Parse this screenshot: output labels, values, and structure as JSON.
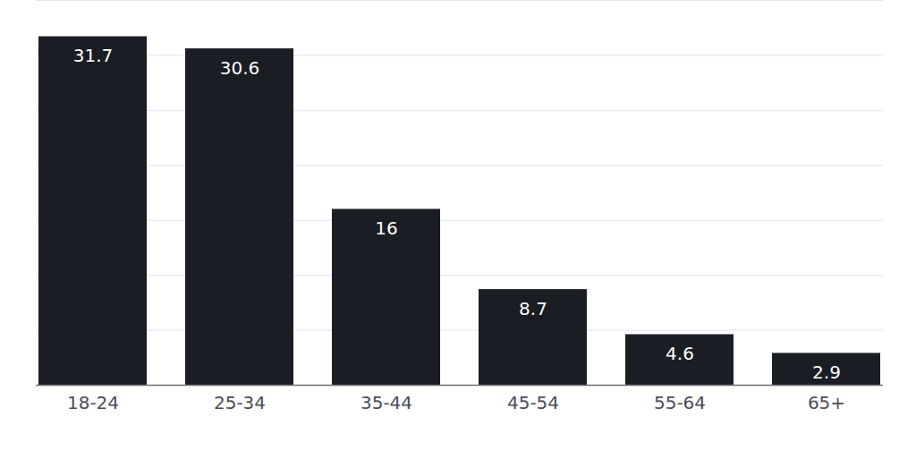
{
  "chart_data": {
    "type": "bar",
    "categories": [
      "18-24",
      "25-34",
      "35-44",
      "45-54",
      "55-64",
      "65+"
    ],
    "values": [
      31.7,
      30.6,
      16,
      8.7,
      4.6,
      2.9
    ],
    "color": "#1a1d23",
    "ylim": [
      0,
      35
    ],
    "yticks": [
      0,
      5,
      10,
      15,
      20,
      25,
      30,
      35
    ],
    "grid": true,
    "data_labels": true,
    "tick_labels": "x"
  }
}
